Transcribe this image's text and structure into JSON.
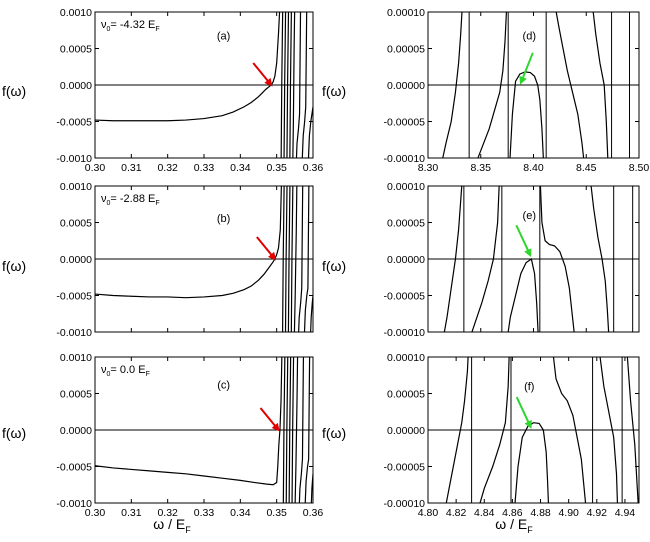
{
  "figure": {
    "xlabel_left": "ω / E",
    "xlabel_left_sub": "F",
    "xlabel_right": "ω / E",
    "xlabel_right_sub": "F",
    "ylabel": "f(ω)"
  },
  "chart_data": [
    {
      "type": "line",
      "panel": "(a)",
      "annotation": "ν",
      "annotation_sub0": "0",
      "annotation_mid": "= -4.32 E",
      "annotation_subF": "F",
      "xlim": [
        0.3,
        0.36
      ],
      "ylim": [
        -0.001,
        0.001
      ],
      "xticks": [
        "0.30",
        "0.31",
        "0.32",
        "0.33",
        "0.34",
        "0.35",
        "0.36"
      ],
      "yticks": [
        "-0.0010",
        "-0.0005",
        "0.0000",
        "0.0005",
        "0.0010"
      ],
      "arrow_color": "#e00000",
      "arrow_tip": [
        0.3485,
        0.0
      ],
      "series": [
        {
          "x": [
            0.3,
            0.305,
            0.31,
            0.315,
            0.32,
            0.325,
            0.33,
            0.335,
            0.338,
            0.341,
            0.343,
            0.345,
            0.346,
            0.347,
            0.348,
            0.3485,
            0.349,
            0.3495,
            0.35,
            0.3505,
            0.351
          ],
          "y": [
            -0.00048,
            -0.00049,
            -0.00049,
            -0.00049,
            -0.00049,
            -0.00048,
            -0.00046,
            -0.00042,
            -0.00037,
            -0.0003,
            -0.00024,
            -0.00016,
            -0.00011,
            -6e-05,
            -2e-05,
            0.0,
            4e-05,
            0.00012,
            0.0003,
            0.0007,
            0.0012
          ]
        },
        {
          "x": [
            0.3512,
            0.3514,
            0.3517
          ],
          "y": [
            -0.0012,
            0.0,
            0.0012
          ]
        },
        {
          "x": [
            0.352,
            0.3522,
            0.3525
          ],
          "y": [
            -0.0012,
            0.0,
            0.0012
          ]
        },
        {
          "x": [
            0.3528,
            0.353,
            0.3533
          ],
          "y": [
            -0.0012,
            0.0,
            0.0012
          ]
        },
        {
          "x": [
            0.3536,
            0.3538,
            0.3541
          ],
          "y": [
            -0.0012,
            0.0,
            0.0012
          ]
        },
        {
          "x": [
            0.3544,
            0.3546,
            0.3548,
            0.355
          ],
          "y": [
            -0.0012,
            -0.0005,
            0.0005,
            0.0012
          ]
        },
        {
          "x": [
            0.3553,
            0.3556,
            0.356,
            0.3563,
            0.3566
          ],
          "y": [
            -0.0012,
            -0.0008,
            -0.0006,
            -0.0004,
            0.0012
          ]
        },
        {
          "x": [
            0.3569,
            0.3573,
            0.3577,
            0.358,
            0.3583
          ],
          "y": [
            -0.0012,
            -0.0007,
            -0.0005,
            -0.0003,
            0.0012
          ]
        },
        {
          "x": [
            0.3586,
            0.359,
            0.3594,
            0.3597,
            0.36
          ],
          "y": [
            -0.0012,
            -0.0007,
            -0.0005,
            -0.0004,
            -0.0003
          ]
        }
      ]
    },
    {
      "type": "line",
      "panel": "(b)",
      "annotation": "ν",
      "annotation_sub0": "0",
      "annotation_mid": "= -2.88 E",
      "annotation_subF": "F",
      "xlim": [
        0.3,
        0.36
      ],
      "ylim": [
        -0.001,
        0.001
      ],
      "xticks": [],
      "yticks": [
        "-0.0010",
        "-0.0005",
        "0.0000",
        "0.0005",
        "0.0010"
      ],
      "arrow_color": "#e00000",
      "arrow_tip": [
        0.3495,
        0.0
      ],
      "series": [
        {
          "x": [
            0.3,
            0.305,
            0.31,
            0.315,
            0.32,
            0.325,
            0.33,
            0.335,
            0.338,
            0.341,
            0.343,
            0.345,
            0.3465,
            0.348,
            0.349,
            0.3495,
            0.35,
            0.3505,
            0.351,
            0.3514
          ],
          "y": [
            -0.00048,
            -0.0005,
            -0.00051,
            -0.00052,
            -0.00052,
            -0.00053,
            -0.00052,
            -0.0005,
            -0.00047,
            -0.00042,
            -0.00037,
            -0.00029,
            -0.00021,
            -0.00011,
            -4e-05,
            0.0,
            6e-05,
            0.00015,
            0.0004,
            0.0012
          ]
        },
        {
          "x": [
            0.3516,
            0.3518,
            0.3521
          ],
          "y": [
            -0.0012,
            0.0,
            0.0012
          ]
        },
        {
          "x": [
            0.3524,
            0.3526,
            0.3529
          ],
          "y": [
            -0.0012,
            0.0,
            0.0012
          ]
        },
        {
          "x": [
            0.3532,
            0.3534,
            0.3537
          ],
          "y": [
            -0.0012,
            0.0,
            0.0012
          ]
        },
        {
          "x": [
            0.354,
            0.3542,
            0.3545
          ],
          "y": [
            -0.0012,
            0.0,
            0.0012
          ]
        },
        {
          "x": [
            0.3548,
            0.3551,
            0.3554,
            0.3556
          ],
          "y": [
            -0.0012,
            -0.0005,
            0.0004,
            0.0012
          ]
        },
        {
          "x": [
            0.3559,
            0.3562,
            0.3566,
            0.3569,
            0.3572
          ],
          "y": [
            -0.0012,
            -0.0008,
            -0.0006,
            -0.0004,
            0.0012
          ]
        },
        {
          "x": [
            0.3575,
            0.3579,
            0.3583,
            0.3586,
            0.3589
          ],
          "y": [
            -0.0012,
            -0.0007,
            -0.0005,
            -0.0004,
            0.0012
          ]
        },
        {
          "x": [
            0.3592,
            0.3595,
            0.3598,
            0.36
          ],
          "y": [
            -0.0012,
            -0.0008,
            -0.0006,
            -0.0005
          ]
        }
      ]
    },
    {
      "type": "line",
      "panel": "(c)",
      "annotation": "ν",
      "annotation_sub0": "0",
      "annotation_mid": "= 0.0 E",
      "annotation_subF": "F",
      "xlim": [
        0.3,
        0.36
      ],
      "ylim": [
        -0.001,
        0.001
      ],
      "xticks": [
        "0.30",
        "0.31",
        "0.32",
        "0.33",
        "0.34",
        "0.35",
        "0.36"
      ],
      "yticks": [
        "-0.0010",
        "-0.0005",
        "0.0000",
        "0.0005",
        "0.0010"
      ],
      "arrow_color": "#e00000",
      "arrow_tip": [
        0.3505,
        0.0
      ],
      "series": [
        {
          "x": [
            0.3,
            0.305,
            0.31,
            0.315,
            0.32,
            0.325,
            0.33,
            0.335,
            0.34,
            0.344,
            0.347,
            0.349,
            0.35,
            0.3503,
            0.3506,
            0.3509,
            0.3512,
            0.3515
          ],
          "y": [
            -0.00049,
            -0.00052,
            -0.00054,
            -0.00056,
            -0.00058,
            -0.0006,
            -0.00063,
            -0.00066,
            -0.00069,
            -0.00072,
            -0.00074,
            -0.00075,
            -0.00072,
            -0.0005,
            -0.0002,
            0.0,
            0.0004,
            0.0012
          ]
        },
        {
          "x": [
            0.3518,
            0.352,
            0.3523
          ],
          "y": [
            -0.0012,
            0.0,
            0.0012
          ]
        },
        {
          "x": [
            0.3526,
            0.3528,
            0.3531
          ],
          "y": [
            -0.0012,
            0.0,
            0.0012
          ]
        },
        {
          "x": [
            0.3534,
            0.3536,
            0.3539
          ],
          "y": [
            -0.0012,
            0.0,
            0.0012
          ]
        },
        {
          "x": [
            0.3542,
            0.3544,
            0.3547
          ],
          "y": [
            -0.0012,
            0.0,
            0.0012
          ]
        },
        {
          "x": [
            0.355,
            0.3553,
            0.3556,
            0.3558
          ],
          "y": [
            -0.0012,
            -0.0005,
            0.0004,
            0.0012
          ]
        },
        {
          "x": [
            0.3561,
            0.3564,
            0.3568,
            0.3571,
            0.3574
          ],
          "y": [
            -0.0012,
            -0.0008,
            -0.0006,
            -0.0004,
            0.0012
          ]
        },
        {
          "x": [
            0.3577,
            0.3581,
            0.3585,
            0.3588,
            0.3591
          ],
          "y": [
            -0.0012,
            -0.0007,
            -0.0005,
            -0.0004,
            0.0012
          ]
        },
        {
          "x": [
            0.3594,
            0.3597,
            0.36
          ],
          "y": [
            -0.0012,
            -0.0008,
            -0.0006
          ]
        }
      ]
    },
    {
      "type": "line",
      "panel": "(d)",
      "xlim": [
        8.3,
        8.5
      ],
      "ylim": [
        -0.001,
        0.001
      ],
      "xticks": [
        "8.30",
        "8.35",
        "8.40",
        "8.45",
        "8.50"
      ],
      "yticks": [
        "-0.00010",
        "-0.00005",
        "0.00000",
        "0.00005",
        "0.00010"
      ],
      "arrow_color": "#2dd62d",
      "arrow_tip": [
        8.388,
        3e-05
      ],
      "vlines": [
        8.339,
        8.376,
        8.412,
        8.474,
        8.491
      ],
      "series": [
        {
          "x": [
            8.311,
            8.317,
            8.322,
            8.326,
            8.329,
            8.331,
            8.333
          ],
          "y": [
            -0.0012,
            -0.0008,
            -0.0005,
            -0.0001,
            0.0003,
            0.0007,
            0.0012
          ]
        },
        {
          "x": [
            8.342,
            8.35,
            8.358,
            8.364,
            8.368,
            8.371,
            8.373,
            8.375
          ],
          "y": [
            -0.0012,
            -0.0009,
            -0.0006,
            -0.0003,
            -0.0001,
            0.0002,
            0.0006,
            0.0012
          ]
        },
        {
          "x": [
            8.377,
            8.38,
            8.383,
            8.387,
            8.392,
            8.397,
            8.401,
            8.404,
            8.406,
            8.408,
            8.41
          ],
          "y": [
            -0.0012,
            -0.0004,
            5e-05,
            0.00015,
            0.00018,
            0.00017,
            0.00012,
            0.0,
            -0.0002,
            -0.0006,
            -0.0012
          ]
        },
        {
          "x": [
            8.419,
            8.424,
            8.428,
            8.432,
            8.437,
            8.442,
            8.446,
            8.449
          ],
          "y": [
            0.0012,
            0.0008,
            0.0005,
            0.0002,
            -0.0001,
            -0.0004,
            -0.0008,
            -0.0012
          ]
        },
        {
          "x": [
            8.455,
            8.459,
            8.463,
            8.467,
            8.469,
            8.471
          ],
          "y": [
            0.0012,
            0.0007,
            0.0003,
            0.0,
            -0.0005,
            -0.0012
          ]
        }
      ]
    },
    {
      "type": "line",
      "panel": "(e)",
      "xlim": [
        7.05,
        7.25
      ],
      "ylim": [
        -0.001,
        0.001
      ],
      "xticks": [],
      "yticks": [
        "-0.00010",
        "-0.00005",
        "0.00000",
        "0.00005",
        "0.00010"
      ],
      "arrow_color": "#2dd62d",
      "arrow_tip": [
        7.147,
        5e-05
      ],
      "vlines": [
        7.084,
        7.12,
        7.156,
        7.226,
        7.244
      ],
      "series": [
        {
          "x": [
            7.063,
            7.068,
            7.072,
            7.076,
            7.079,
            7.081,
            7.083
          ],
          "y": [
            -0.0012,
            -0.0008,
            -0.0004,
            0.0,
            0.0004,
            0.0008,
            0.0012
          ]
        },
        {
          "x": [
            7.087,
            7.094,
            7.101,
            7.107,
            7.112,
            7.116,
            7.118
          ],
          "y": [
            -0.0012,
            -0.0009,
            -0.0006,
            -0.0003,
            0.0,
            0.0005,
            0.0012
          ]
        },
        {
          "x": [
            7.124,
            7.128,
            7.133,
            7.138,
            7.143,
            7.148,
            7.151,
            7.153,
            7.155
          ],
          "y": [
            -0.0012,
            -0.0008,
            -0.0005,
            -0.0002,
            -5e-05,
            0.0,
            -0.0002,
            -0.0006,
            -0.0012
          ]
        },
        {
          "x": [
            7.156,
            7.158,
            7.161,
            7.165,
            7.17,
            7.175,
            7.18,
            7.184,
            7.187,
            7.19
          ],
          "y": [
            0.0012,
            0.0005,
            0.00025,
            0.0002,
            0.00018,
            0.0001,
            -0.0001,
            -0.0004,
            -0.0008,
            -0.0012
          ]
        },
        {
          "x": [
            7.203,
            7.207,
            7.211,
            7.215,
            7.218,
            7.22,
            7.222
          ],
          "y": [
            0.0012,
            0.0007,
            0.0003,
            0.0,
            -0.0003,
            -0.0007,
            -0.0012
          ]
        }
      ]
    },
    {
      "type": "line",
      "panel": "(f)",
      "xlim": [
        4.8,
        4.95
      ],
      "ylim": [
        -0.001,
        0.001
      ],
      "xticks": [
        "4.80",
        "4.82",
        "4.84",
        "4.86",
        "4.88",
        "4.90",
        "4.92",
        "4.94"
      ],
      "yticks": [
        "-0.00010",
        "-0.00005",
        "0.00000",
        "0.00005",
        "0.00010"
      ],
      "arrow_color": "#2dd62d",
      "arrow_tip": [
        4.873,
        4e-05
      ],
      "vlines": [
        4.831,
        4.859,
        4.917,
        4.938
      ],
      "series": [
        {
          "x": [
            4.811,
            4.815,
            4.818,
            4.821,
            4.824,
            4.826,
            4.828,
            4.829
          ],
          "y": [
            -0.0012,
            -0.0008,
            -0.0005,
            -0.0002,
            0.0001,
            0.0004,
            0.0008,
            0.0012
          ]
        },
        {
          "x": [
            4.834,
            4.84,
            4.846,
            4.851,
            4.855,
            4.857,
            4.858
          ],
          "y": [
            -0.0012,
            -0.0008,
            -0.0005,
            -0.0002,
            0.0001,
            0.0006,
            0.0012
          ]
        },
        {
          "x": [
            4.861,
            4.864,
            4.867,
            4.871,
            4.875,
            4.879,
            4.882,
            4.884,
            4.885,
            4.886
          ],
          "y": [
            -0.0012,
            -0.0005,
            -0.0001,
            5e-05,
            0.0001,
            9e-05,
            0.0,
            -0.0003,
            -0.0007,
            -0.0012
          ]
        },
        {
          "x": [
            4.888,
            4.891,
            4.895,
            4.899,
            4.903,
            4.906,
            4.909,
            4.911,
            4.913
          ],
          "y": [
            0.0012,
            0.0007,
            0.0005,
            0.0004,
            0.0002,
            -0.0001,
            -0.0004,
            -0.0008,
            -0.0012
          ]
        },
        {
          "x": [
            4.921,
            4.925,
            4.929,
            4.932,
            4.934,
            4.935
          ],
          "y": [
            0.0012,
            0.0006,
            0.0002,
            -0.0001,
            -0.0006,
            -0.0012
          ]
        },
        {
          "x": [
            4.941,
            4.944,
            4.947,
            4.95
          ],
          "y": [
            0.0012,
            0.0004,
            -0.0002,
            -0.0012
          ]
        }
      ]
    }
  ]
}
